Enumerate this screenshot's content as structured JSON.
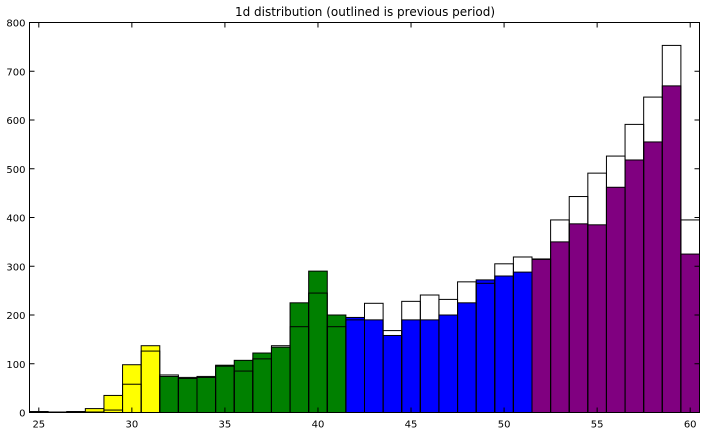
{
  "chart_data": {
    "type": "bar",
    "title": "1d distribution (outlined is previous period)",
    "xlabel": "",
    "ylabel": "",
    "xlim": [
      24.5,
      60.5
    ],
    "ylim": [
      0,
      800
    ],
    "bin_width": 1,
    "xticks": [
      25,
      30,
      35,
      40,
      45,
      50,
      55,
      60
    ],
    "yticks": [
      0,
      100,
      200,
      300,
      400,
      500,
      600,
      700,
      800
    ],
    "grid": false,
    "colors": {
      "yellow": "#ffff00",
      "green": "#008000",
      "blue": "#0000ff",
      "purple": "#800080"
    },
    "series": [
      {
        "style": "filled",
        "bins": [
          {
            "x": 25,
            "value": 1,
            "color": "yellow"
          },
          {
            "x": 26,
            "value": 1,
            "color": "yellow"
          },
          {
            "x": 27,
            "value": 2,
            "color": "yellow"
          },
          {
            "x": 28,
            "value": 8,
            "color": "yellow"
          },
          {
            "x": 29,
            "value": 35,
            "color": "yellow"
          },
          {
            "x": 30,
            "value": 98,
            "color": "yellow"
          },
          {
            "x": 31,
            "value": 137,
            "color": "yellow"
          },
          {
            "x": 32,
            "value": 74,
            "color": "green"
          },
          {
            "x": 33,
            "value": 70,
            "color": "green"
          },
          {
            "x": 34,
            "value": 72,
            "color": "green"
          },
          {
            "x": 35,
            "value": 97,
            "color": "green"
          },
          {
            "x": 36,
            "value": 107,
            "color": "green"
          },
          {
            "x": 37,
            "value": 122,
            "color": "green"
          },
          {
            "x": 38,
            "value": 134,
            "color": "green"
          },
          {
            "x": 39,
            "value": 225,
            "color": "green"
          },
          {
            "x": 40,
            "value": 290,
            "color": "green"
          },
          {
            "x": 41,
            "value": 200,
            "color": "green"
          },
          {
            "x": 42,
            "value": 195,
            "color": "blue"
          },
          {
            "x": 43,
            "value": 190,
            "color": "blue"
          },
          {
            "x": 44,
            "value": 158,
            "color": "blue"
          },
          {
            "x": 45,
            "value": 190,
            "color": "blue"
          },
          {
            "x": 46,
            "value": 190,
            "color": "blue"
          },
          {
            "x": 47,
            "value": 200,
            "color": "blue"
          },
          {
            "x": 48,
            "value": 225,
            "color": "blue"
          },
          {
            "x": 49,
            "value": 272,
            "color": "blue"
          },
          {
            "x": 50,
            "value": 280,
            "color": "blue"
          },
          {
            "x": 51,
            "value": 288,
            "color": "blue"
          },
          {
            "x": 52,
            "value": 315,
            "color": "purple"
          },
          {
            "x": 53,
            "value": 350,
            "color": "purple"
          },
          {
            "x": 54,
            "value": 387,
            "color": "purple"
          },
          {
            "x": 55,
            "value": 385,
            "color": "purple"
          },
          {
            "x": 56,
            "value": 462,
            "color": "purple"
          },
          {
            "x": 57,
            "value": 518,
            "color": "purple"
          },
          {
            "x": 58,
            "value": 555,
            "color": "purple"
          },
          {
            "x": 59,
            "value": 670,
            "color": "purple"
          },
          {
            "x": 60,
            "value": 325,
            "color": "purple"
          }
        ]
      },
      {
        "style": "outlined",
        "bins": [
          {
            "x": 25,
            "value": 2
          },
          {
            "x": 26,
            "value": 0
          },
          {
            "x": 27,
            "value": 0
          },
          {
            "x": 28,
            "value": 1
          },
          {
            "x": 29,
            "value": 5
          },
          {
            "x": 30,
            "value": 58
          },
          {
            "x": 31,
            "value": 126
          },
          {
            "x": 32,
            "value": 77
          },
          {
            "x": 33,
            "value": 72
          },
          {
            "x": 34,
            "value": 74
          },
          {
            "x": 35,
            "value": 95
          },
          {
            "x": 36,
            "value": 85
          },
          {
            "x": 37,
            "value": 110
          },
          {
            "x": 38,
            "value": 137
          },
          {
            "x": 39,
            "value": 176
          },
          {
            "x": 40,
            "value": 245
          },
          {
            "x": 41,
            "value": 176
          },
          {
            "x": 42,
            "value": 190
          },
          {
            "x": 43,
            "value": 224
          },
          {
            "x": 44,
            "value": 168
          },
          {
            "x": 45,
            "value": 228
          },
          {
            "x": 46,
            "value": 241
          },
          {
            "x": 47,
            "value": 232
          },
          {
            "x": 48,
            "value": 268
          },
          {
            "x": 49,
            "value": 265
          },
          {
            "x": 50,
            "value": 305
          },
          {
            "x": 51,
            "value": 319
          },
          {
            "x": 52,
            "value": 314
          },
          {
            "x": 53,
            "value": 395
          },
          {
            "x": 54,
            "value": 443
          },
          {
            "x": 55,
            "value": 491
          },
          {
            "x": 56,
            "value": 526
          },
          {
            "x": 57,
            "value": 591
          },
          {
            "x": 58,
            "value": 647
          },
          {
            "x": 59,
            "value": 753
          },
          {
            "x": 60,
            "value": 395
          }
        ]
      }
    ]
  }
}
